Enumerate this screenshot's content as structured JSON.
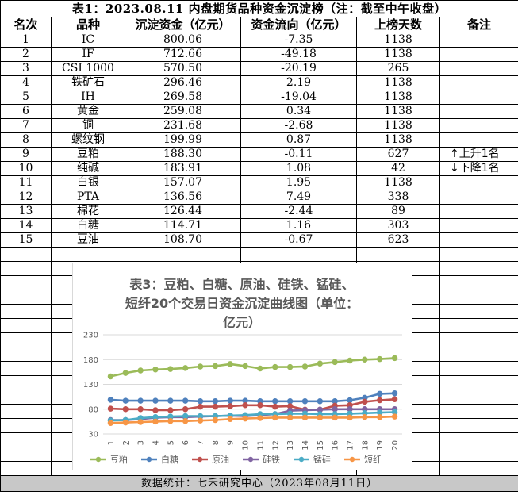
{
  "title": "表1：2023.08.11  内盘期货品种资金沉淀榜（注：截至中午收盘）",
  "headers": [
    "名次",
    "品种",
    "沉淀资金（亿元）",
    "资金流向（亿元）",
    "上榜天数",
    "备注"
  ],
  "rows": [
    {
      "rank": "1",
      "name": "IC",
      "settle": "800.06",
      "flow": "-7.35",
      "days": "1138",
      "note": ""
    },
    {
      "rank": "2",
      "name": "IF",
      "settle": "712.66",
      "flow": "-49.18",
      "days": "1138",
      "note": ""
    },
    {
      "rank": "3",
      "name": "CSI 1000",
      "settle": "570.50",
      "flow": "-20.19",
      "days": "265",
      "note": ""
    },
    {
      "rank": "4",
      "name": "铁矿石",
      "settle": "296.46",
      "flow": "2.19",
      "days": "1138",
      "note": ""
    },
    {
      "rank": "5",
      "name": "IH",
      "settle": "269.58",
      "flow": "-19.04",
      "days": "1138",
      "note": ""
    },
    {
      "rank": "6",
      "name": "黄金",
      "settle": "259.08",
      "flow": "0.34",
      "days": "1138",
      "note": ""
    },
    {
      "rank": "7",
      "name": "铜",
      "settle": "231.68",
      "flow": "-2.68",
      "days": "1138",
      "note": ""
    },
    {
      "rank": "8",
      "name": "螺纹钢",
      "settle": "199.99",
      "flow": "0.87",
      "days": "1138",
      "note": ""
    },
    {
      "rank": "9",
      "name": "豆粕",
      "settle": "188.30",
      "flow": "-0.11",
      "days": "627",
      "note": "↑上升1名"
    },
    {
      "rank": "10",
      "name": "纯碱",
      "settle": "183.91",
      "flow": "1.08",
      "days": "42",
      "note": "↓下降1名"
    },
    {
      "rank": "11",
      "name": "白银",
      "settle": "157.07",
      "flow": "1.95",
      "days": "1138",
      "note": ""
    },
    {
      "rank": "12",
      "name": "PTA",
      "settle": "136.56",
      "flow": "7.49",
      "days": "338",
      "note": ""
    },
    {
      "rank": "13",
      "name": "棉花",
      "settle": "126.44",
      "flow": "-2.44",
      "days": "89",
      "note": ""
    },
    {
      "rank": "14",
      "name": "白糖",
      "settle": "114.71",
      "flow": "1.16",
      "days": "303",
      "note": ""
    },
    {
      "rank": "15",
      "name": "豆油",
      "settle": "108.70",
      "flow": "-0.67",
      "days": "623",
      "note": ""
    }
  ],
  "footer": "数据统计：七禾研究中心（2023年08月11日）",
  "chart_data": {
    "type": "line",
    "title_lines": [
      "表3：豆粕、白糖、原油、硅铁、锰硅、",
      "短纤20个交易日资金沉淀曲线图（单位：",
      "亿元）"
    ],
    "x": [
      "1",
      "2",
      "3",
      "4",
      "5",
      "6",
      "7",
      "8",
      "9",
      "10",
      "11",
      "12",
      "13",
      "14",
      "15",
      "16",
      "17",
      "18",
      "19",
      "20"
    ],
    "y_ticks": [
      "30",
      "80",
      "130",
      "180",
      "230"
    ],
    "ylim": [
      30,
      230
    ],
    "grid": true,
    "legend_position": "bottom",
    "series": [
      {
        "name": "豆粕",
        "color": "#9bbb59",
        "values": [
          146,
          153,
          158,
          160,
          161,
          163,
          166,
          167,
          171,
          167,
          162,
          165,
          165,
          166,
          172,
          175,
          178,
          180,
          181,
          183
        ]
      },
      {
        "name": "白糖",
        "color": "#4f81bd",
        "values": [
          99,
          97,
          97,
          97,
          97,
          97,
          96,
          96,
          97,
          97,
          96,
          96,
          96,
          96,
          96,
          96,
          98,
          103,
          111,
          112
        ]
      },
      {
        "name": "原油",
        "color": "#c0504d",
        "values": [
          81,
          80,
          80,
          78,
          78,
          80,
          85,
          85,
          86,
          88,
          88,
          85,
          86,
          79,
          79,
          87,
          88,
          95,
          98,
          100
        ]
      },
      {
        "name": "硅铁",
        "color": "#8064a2",
        "values": [
          58,
          58,
          60,
          63,
          64,
          64,
          65,
          66,
          67,
          66,
          68,
          70,
          77,
          78,
          79,
          80,
          80,
          80,
          80,
          80
        ]
      },
      {
        "name": "锰硅",
        "color": "#4bacc6",
        "values": [
          57,
          58,
          62,
          64,
          65,
          66,
          66,
          66,
          67,
          68,
          70,
          70,
          71,
          71,
          70,
          70,
          71,
          72,
          73,
          74
        ]
      },
      {
        "name": "短纤",
        "color": "#f79646",
        "values": [
          52,
          53,
          54,
          55,
          56,
          56,
          57,
          58,
          60,
          61,
          62,
          63,
          63,
          63,
          63,
          63,
          63,
          64,
          64,
          65
        ]
      }
    ]
  }
}
